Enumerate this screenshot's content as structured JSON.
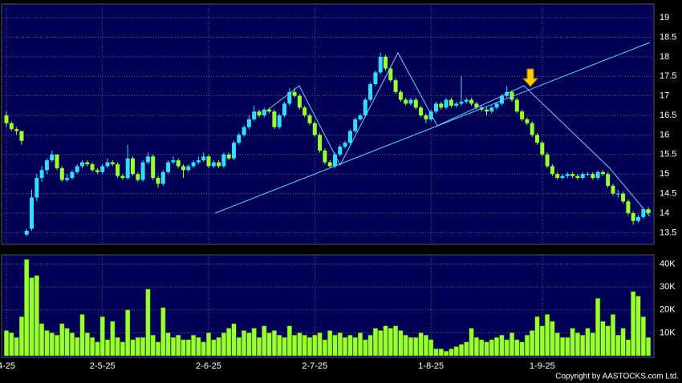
{
  "chart_data": {
    "type": "candlestick",
    "categories": [
      "4-25",
      null,
      null,
      null,
      null,
      null,
      null,
      null,
      null,
      null,
      null,
      null,
      null,
      null,
      null,
      null,
      null,
      null,
      null,
      "2-5-25",
      null,
      null,
      null,
      null,
      null,
      null,
      null,
      null,
      null,
      null,
      null,
      null,
      null,
      null,
      null,
      null,
      null,
      null,
      null,
      null,
      "2-6-25",
      null,
      null,
      null,
      null,
      null,
      null,
      null,
      null,
      null,
      null,
      null,
      null,
      null,
      null,
      null,
      null,
      null,
      null,
      null,
      null,
      "2-7-25",
      null,
      null,
      null,
      null,
      null,
      null,
      null,
      null,
      null,
      null,
      null,
      null,
      null,
      null,
      null,
      null,
      null,
      null,
      null,
      null,
      null,
      null,
      "1-8-25",
      null,
      null,
      null,
      null,
      null,
      null,
      null,
      null,
      null,
      null,
      null,
      null,
      null,
      null,
      null,
      null,
      null,
      null,
      null,
      null,
      null,
      "1-9-25",
      null,
      null,
      null,
      null,
      null,
      null,
      null,
      null,
      null,
      null,
      null,
      null,
      null,
      null,
      null,
      null,
      null,
      null,
      null,
      null,
      null
    ],
    "candles": [
      [
        16.5,
        16.6,
        16.2,
        16.3
      ],
      [
        16.3,
        16.35,
        16.1,
        16.15
      ],
      [
        16.15,
        16.2,
        16.0,
        16.1
      ],
      [
        16.1,
        16.1,
        15.75,
        15.85
      ],
      [
        13.45,
        13.6,
        13.4,
        13.55
      ],
      [
        13.6,
        14.6,
        13.55,
        14.4
      ],
      [
        14.4,
        15.0,
        14.3,
        14.9
      ],
      [
        14.9,
        15.2,
        14.8,
        15.1
      ],
      [
        15.1,
        15.4,
        15.0,
        15.35
      ],
      [
        15.35,
        15.6,
        15.3,
        15.5
      ],
      [
        15.5,
        15.5,
        15.1,
        15.15
      ],
      [
        15.15,
        15.2,
        14.8,
        14.85
      ],
      [
        14.85,
        15.0,
        14.8,
        14.9
      ],
      [
        14.9,
        15.1,
        14.85,
        15.05
      ],
      [
        15.05,
        15.25,
        15.0,
        15.2
      ],
      [
        15.2,
        15.35,
        15.15,
        15.3
      ],
      [
        15.3,
        15.35,
        15.2,
        15.25
      ],
      [
        15.25,
        15.3,
        15.05,
        15.1
      ],
      [
        15.1,
        15.15,
        15.0,
        15.05
      ],
      [
        15.05,
        15.25,
        15.0,
        15.2
      ],
      [
        15.2,
        15.4,
        15.15,
        15.3
      ],
      [
        15.3,
        15.35,
        15.2,
        15.25
      ],
      [
        15.25,
        15.3,
        14.9,
        14.95
      ],
      [
        14.95,
        15.0,
        14.85,
        14.9
      ],
      [
        14.9,
        15.75,
        14.85,
        15.4
      ],
      [
        15.4,
        15.45,
        14.95,
        15.0
      ],
      [
        15.0,
        15.05,
        14.8,
        14.85
      ],
      [
        14.85,
        15.35,
        14.8,
        15.3
      ],
      [
        15.3,
        15.55,
        15.25,
        15.45
      ],
      [
        15.45,
        15.5,
        14.85,
        14.9
      ],
      [
        14.9,
        14.95,
        14.65,
        14.75
      ],
      [
        14.75,
        15.1,
        14.7,
        15.05
      ],
      [
        15.05,
        15.35,
        15.0,
        15.3
      ],
      [
        15.3,
        15.45,
        15.25,
        15.35
      ],
      [
        15.35,
        15.4,
        15.15,
        15.2
      ],
      [
        15.2,
        15.25,
        14.9,
        15.1
      ],
      [
        15.1,
        15.25,
        15.05,
        15.2
      ],
      [
        15.2,
        15.35,
        15.15,
        15.3
      ],
      [
        15.3,
        15.45,
        15.25,
        15.35
      ],
      [
        15.35,
        15.55,
        15.3,
        15.45
      ],
      [
        15.45,
        15.5,
        15.15,
        15.2
      ],
      [
        15.2,
        15.35,
        15.15,
        15.3
      ],
      [
        15.3,
        15.35,
        15.15,
        15.2
      ],
      [
        15.2,
        15.55,
        15.15,
        15.5
      ],
      [
        15.5,
        15.55,
        15.35,
        15.4
      ],
      [
        15.4,
        15.85,
        15.35,
        15.8
      ],
      [
        15.8,
        16.05,
        15.75,
        16.0
      ],
      [
        16.0,
        16.25,
        15.95,
        16.2
      ],
      [
        16.2,
        16.5,
        16.15,
        16.4
      ],
      [
        16.4,
        16.75,
        16.35,
        16.6
      ],
      [
        16.6,
        16.65,
        16.45,
        16.5
      ],
      [
        16.5,
        16.7,
        16.45,
        16.65
      ],
      [
        16.65,
        16.7,
        16.55,
        16.6
      ],
      [
        16.6,
        16.65,
        16.15,
        16.2
      ],
      [
        16.2,
        16.55,
        16.15,
        16.5
      ],
      [
        16.5,
        16.85,
        16.45,
        16.8
      ],
      [
        16.8,
        17.2,
        16.75,
        17.1
      ],
      [
        17.1,
        17.2,
        16.95,
        17.0
      ],
      [
        17.0,
        17.05,
        16.65,
        16.7
      ],
      [
        16.7,
        16.75,
        16.45,
        16.5
      ],
      [
        16.5,
        16.55,
        16.25,
        16.3
      ],
      [
        16.3,
        16.35,
        15.95,
        16.0
      ],
      [
        16.0,
        16.05,
        15.55,
        15.6
      ],
      [
        15.6,
        15.65,
        15.25,
        15.3
      ],
      [
        15.3,
        15.35,
        15.15,
        15.2
      ],
      [
        15.2,
        15.55,
        15.15,
        15.5
      ],
      [
        15.5,
        15.75,
        15.45,
        15.7
      ],
      [
        15.7,
        15.85,
        15.65,
        15.8
      ],
      [
        15.8,
        16.15,
        15.75,
        16.1
      ],
      [
        16.1,
        16.45,
        16.05,
        16.4
      ],
      [
        16.4,
        16.55,
        16.35,
        16.5
      ],
      [
        16.5,
        16.95,
        16.45,
        16.9
      ],
      [
        16.9,
        17.35,
        16.85,
        17.3
      ],
      [
        17.3,
        17.65,
        17.25,
        17.6
      ],
      [
        17.6,
        18.1,
        17.55,
        18.0
      ],
      [
        18.0,
        18.05,
        17.65,
        17.7
      ],
      [
        17.7,
        17.75,
        17.35,
        17.4
      ],
      [
        17.4,
        17.45,
        17.05,
        17.1
      ],
      [
        17.1,
        17.15,
        16.85,
        16.9
      ],
      [
        16.9,
        16.95,
        16.75,
        16.8
      ],
      [
        16.8,
        16.95,
        16.75,
        16.9
      ],
      [
        16.9,
        16.95,
        16.65,
        16.7
      ],
      [
        16.7,
        16.75,
        16.45,
        16.5
      ],
      [
        16.5,
        16.55,
        16.3,
        16.4
      ],
      [
        16.4,
        16.65,
        16.35,
        16.6
      ],
      [
        16.6,
        16.85,
        16.55,
        16.8
      ],
      [
        16.8,
        16.85,
        16.65,
        16.7
      ],
      [
        16.7,
        16.95,
        16.65,
        16.9
      ],
      [
        16.9,
        16.95,
        16.7,
        16.75
      ],
      [
        16.75,
        16.85,
        16.7,
        16.8
      ],
      [
        16.8,
        17.5,
        16.75,
        16.85
      ],
      [
        16.85,
        16.95,
        16.8,
        16.9
      ],
      [
        16.9,
        16.95,
        16.75,
        16.8
      ],
      [
        16.8,
        16.85,
        16.65,
        16.7
      ],
      [
        16.7,
        16.75,
        16.6,
        16.65
      ],
      [
        16.65,
        16.7,
        16.5,
        16.6
      ],
      [
        16.6,
        16.75,
        16.55,
        16.7
      ],
      [
        16.7,
        16.85,
        16.65,
        16.8
      ],
      [
        16.8,
        17.05,
        16.75,
        17.0
      ],
      [
        17.0,
        17.25,
        16.95,
        17.1
      ],
      [
        17.1,
        17.15,
        16.85,
        16.9
      ],
      [
        16.9,
        16.95,
        16.55,
        16.6
      ],
      [
        16.6,
        16.65,
        16.35,
        16.4
      ],
      [
        16.4,
        16.45,
        16.25,
        16.3
      ],
      [
        16.3,
        16.35,
        15.95,
        16.0
      ],
      [
        16.0,
        16.05,
        15.75,
        15.8
      ],
      [
        15.8,
        15.85,
        15.45,
        15.5
      ],
      [
        15.5,
        15.55,
        15.15,
        15.2
      ],
      [
        15.2,
        15.25,
        14.95,
        15.0
      ],
      [
        15.0,
        15.05,
        14.85,
        14.9
      ],
      [
        14.9,
        15.0,
        14.85,
        14.95
      ],
      [
        14.95,
        15.05,
        14.9,
        15.0
      ],
      [
        15.0,
        15.05,
        14.9,
        14.95
      ],
      [
        14.95,
        15.0,
        14.85,
        14.9
      ],
      [
        14.9,
        15.05,
        14.85,
        15.0
      ],
      [
        15.0,
        15.05,
        14.95,
        15.0
      ],
      [
        15.0,
        15.05,
        14.85,
        14.9
      ],
      [
        14.9,
        15.1,
        14.85,
        15.05
      ],
      [
        15.05,
        15.1,
        14.95,
        15.0
      ],
      [
        15.0,
        15.05,
        14.65,
        14.7
      ],
      [
        14.7,
        14.75,
        14.45,
        14.5
      ],
      [
        14.5,
        14.6,
        14.4,
        14.5
      ],
      [
        14.5,
        14.55,
        14.25,
        14.3
      ],
      [
        14.3,
        14.35,
        13.95,
        14.0
      ],
      [
        14.0,
        14.05,
        13.7,
        13.8
      ],
      [
        13.8,
        13.95,
        13.75,
        13.9
      ],
      [
        13.9,
        14.15,
        13.85,
        14.1
      ],
      [
        14.1,
        14.15,
        13.95,
        14.0
      ]
    ],
    "volume": [
      11000,
      10000,
      8000,
      17000,
      42000,
      34000,
      35000,
      14000,
      11000,
      10000,
      9000,
      14000,
      12000,
      10000,
      8000,
      18000,
      10000,
      8000,
      6000,
      17000,
      7000,
      15000,
      8000,
      6000,
      20000,
      7000,
      8000,
      8000,
      29000,
      9000,
      6000,
      21000,
      10000,
      8000,
      9000,
      7000,
      7000,
      9000,
      8000,
      6000,
      10000,
      7000,
      8000,
      10000,
      12000,
      14000,
      8000,
      11000,
      10000,
      12000,
      8000,
      13000,
      10000,
      11000,
      9000,
      8000,
      13000,
      9000,
      10000,
      9000,
      8000,
      9000,
      10000,
      7000,
      11000,
      9000,
      10000,
      8000,
      9000,
      8000,
      10000,
      7000,
      9000,
      12000,
      11000,
      13000,
      12000,
      13000,
      11000,
      9000,
      8000,
      8000,
      10000,
      9000,
      7000,
      3000,
      3000,
      2000,
      3000,
      4000,
      5000,
      6000,
      12000,
      8000,
      7000,
      6000,
      7000,
      8000,
      9000,
      7000,
      10000,
      7000,
      6000,
      9000,
      11000,
      17000,
      13000,
      18000,
      15000,
      10000,
      8000,
      8000,
      12000,
      10000,
      9000,
      12000,
      10000,
      25000,
      15000,
      13000,
      18000,
      9000,
      12000,
      7000,
      28000,
      26000,
      17000,
      8000
    ],
    "up_color": "#33ddff",
    "down_color": "#99ff33",
    "volume_color": "#99ff33",
    "ylim": [
      13.2,
      19.35
    ],
    "yticks": [
      13.5,
      14,
      14.5,
      15,
      15.5,
      16,
      16.5,
      17,
      17.5,
      18,
      18.5,
      19
    ],
    "volume_ylim": [
      0,
      44000
    ],
    "volume_yticks": [
      {
        "value": 10000,
        "label": "10K"
      },
      {
        "value": 20000,
        "label": "20K"
      },
      {
        "value": 30000,
        "label": "30K"
      },
      {
        "value": 40000,
        "label": "40K"
      }
    ],
    "grid": true,
    "credit": "Copyright by AASTOCKS.com Ltd."
  }
}
